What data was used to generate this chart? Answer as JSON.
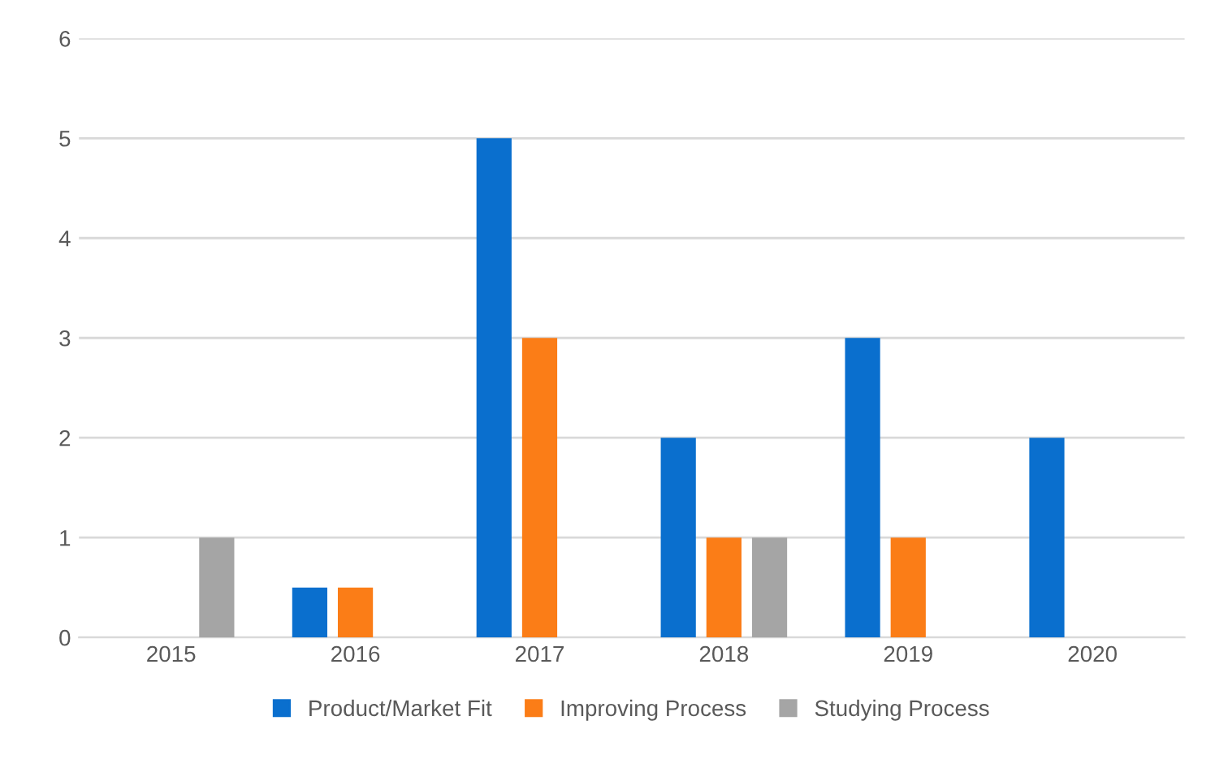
{
  "chart_data": {
    "type": "bar",
    "categories": [
      "2015",
      "2016",
      "2017",
      "2018",
      "2019",
      "2020"
    ],
    "series": [
      {
        "name": "Product/Market Fit",
        "color": "#0a6fce",
        "values": [
          0,
          0.5,
          5,
          2,
          3,
          2
        ]
      },
      {
        "name": "Improving Process",
        "color": "#fb7d17",
        "values": [
          0,
          0.5,
          3,
          1,
          1,
          0
        ]
      },
      {
        "name": "Studying Process",
        "color": "#a5a5a5",
        "values": [
          1,
          0,
          0,
          1,
          0,
          0
        ]
      }
    ],
    "ylim": [
      0,
      6
    ],
    "yticks": [
      0,
      1,
      2,
      3,
      4,
      5,
      6
    ],
    "grid": "y",
    "legend": "bottom"
  }
}
